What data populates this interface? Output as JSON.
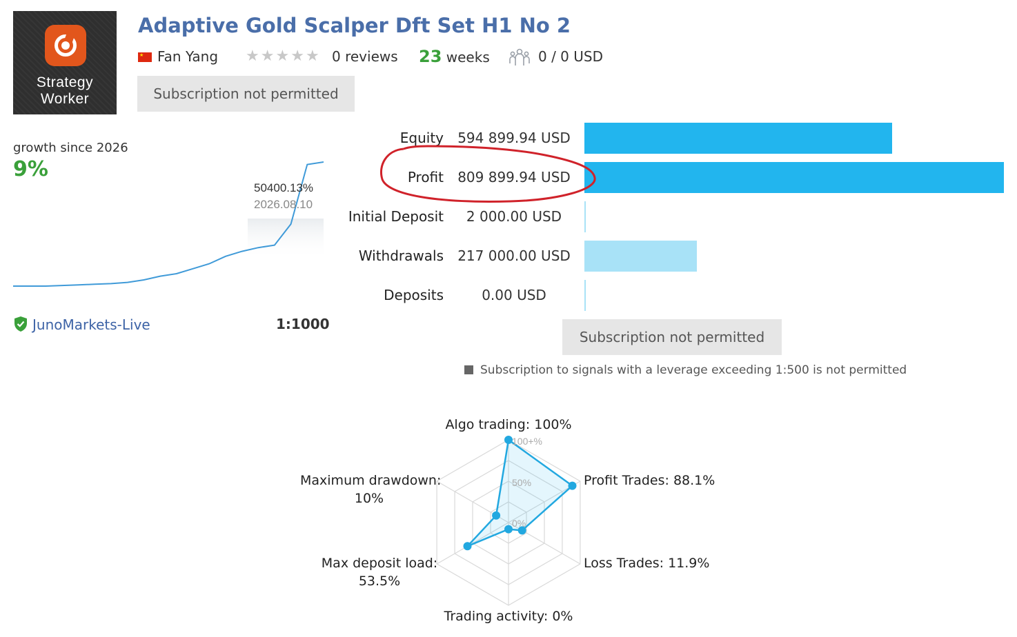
{
  "logo": {
    "line1": "Strategy",
    "line2": "Worker"
  },
  "signal": {
    "title": "Adaptive Gold Scalper Dft Set H1 No 2",
    "author": "Fan Yang",
    "reviews": "0 reviews",
    "weeks_num": "23",
    "weeks_label": "weeks",
    "subscribers": "0 / 0 USD",
    "subscribe_btn": "Subscription not permitted"
  },
  "growth": {
    "label": "growth since 2026",
    "value": "9%",
    "tooltip_value": "50400.13%",
    "tooltip_date": "2026.08.10",
    "broker": "JunoMarkets-Live",
    "leverage": "1:1000"
  },
  "stats": [
    {
      "label": "Equity",
      "value": "594 899.94 USD",
      "bar": 0.733,
      "color": "#22b5ee"
    },
    {
      "label": "Profit",
      "value": "809 899.94 USD",
      "bar": 1.0,
      "color": "#22b5ee"
    },
    {
      "label": "Initial Deposit",
      "value": "2 000.00 USD",
      "bar": 0.0025,
      "color": "#a8e2f7"
    },
    {
      "label": "Withdrawals",
      "value": "217 000.00 USD",
      "bar": 0.268,
      "color": "#a8e2f7"
    },
    {
      "label": "Deposits",
      "value": "0.00 USD",
      "bar": 0.0,
      "color": "#a8e2f7"
    }
  ],
  "subscribe_btn2": "Subscription not permitted",
  "note": "Subscription to signals with a leverage exceeding 1:500 is not permitted",
  "radar": {
    "algo": "Algo trading: 100%",
    "profit": "Profit Trades: 88.1%",
    "loss": "Loss Trades: 11.9%",
    "activity": "Trading activity: 0%",
    "deposit_load_1": "Max deposit load:",
    "deposit_load_2": "53.5%",
    "drawdown_1": "Maximum drawdown:",
    "drawdown_2": "10%",
    "tick_100": "100+%",
    "tick_50": "50%",
    "tick_0": "0%",
    "values": [
      1.0,
      0.881,
      0.119,
      0.0,
      0.535,
      0.1
    ]
  },
  "chart_data": {
    "type": "line",
    "title": "",
    "series": [
      {
        "values": [
          0,
          0,
          0,
          0.5,
          1,
          1.5,
          2,
          3,
          5,
          8,
          10,
          14,
          18,
          24,
          28,
          31,
          33,
          50,
          98,
          100
        ]
      }
    ]
  }
}
